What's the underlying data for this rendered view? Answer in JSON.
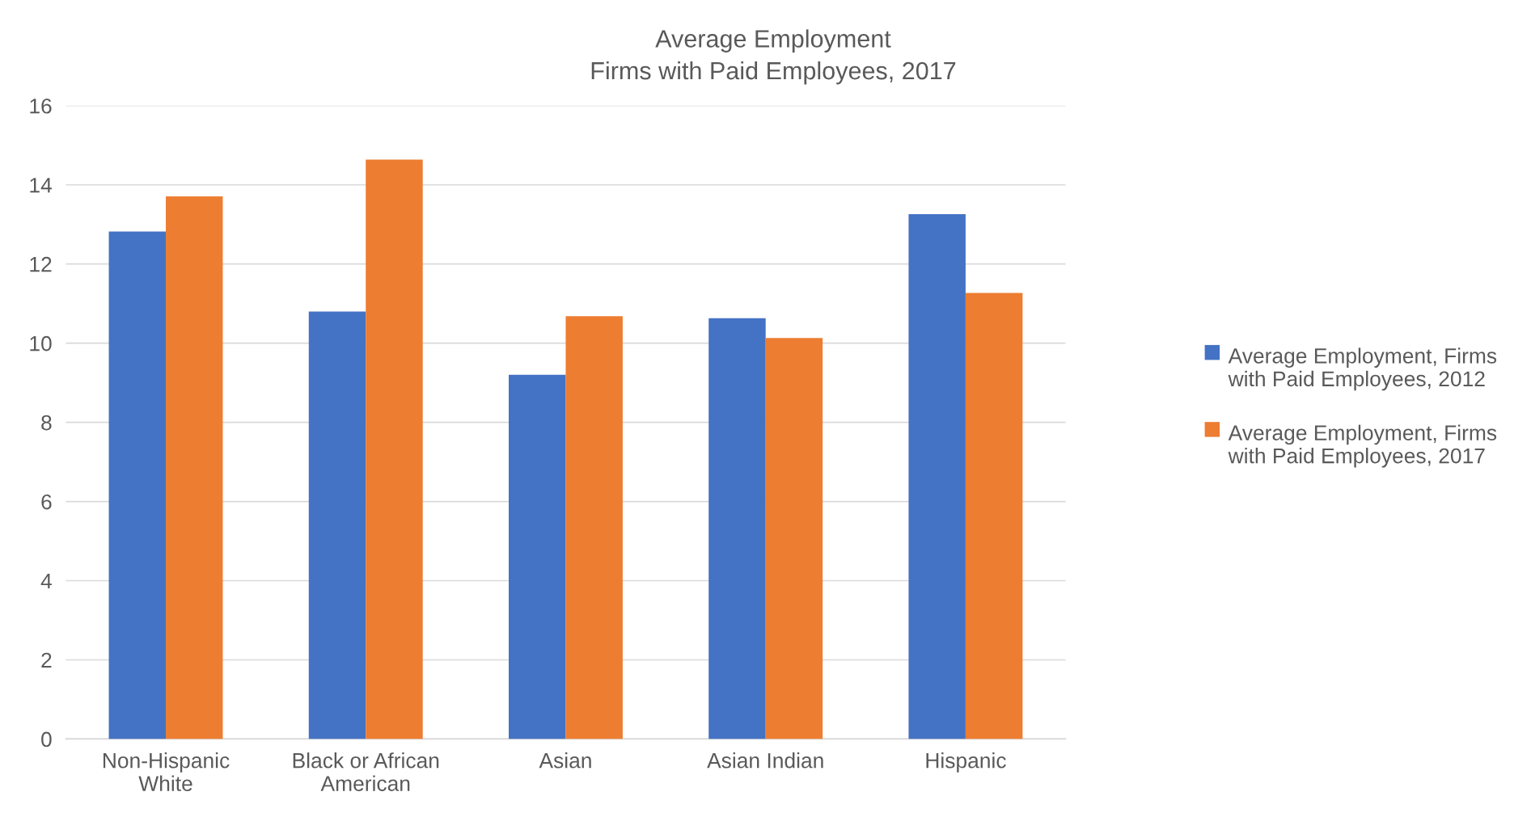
{
  "chart_data": {
    "type": "bar",
    "title": "Average Employment",
    "subtitle": "Firms with Paid Employees, 2017",
    "categories": [
      "Non-Hispanic\nWhite",
      "Black or African\nAmerican",
      "Asian",
      "Asian Indian",
      "Hispanic"
    ],
    "series": [
      {
        "name": "Average Employment, Firms\nwith Paid Employees, 2012",
        "color": "#4472c4",
        "values": [
          12.82,
          10.8,
          9.2,
          10.63,
          13.26
        ]
      },
      {
        "name": "Average Employment, Firms\nwith Paid Employees, 2017",
        "color": "#ed7d31",
        "values": [
          13.71,
          14.64,
          10.68,
          10.13,
          11.27
        ]
      }
    ],
    "ylim": [
      0,
      16
    ],
    "yticks": [
      0,
      2,
      4,
      6,
      8,
      10,
      12,
      14,
      16
    ],
    "grid": "y",
    "legend": "right"
  }
}
